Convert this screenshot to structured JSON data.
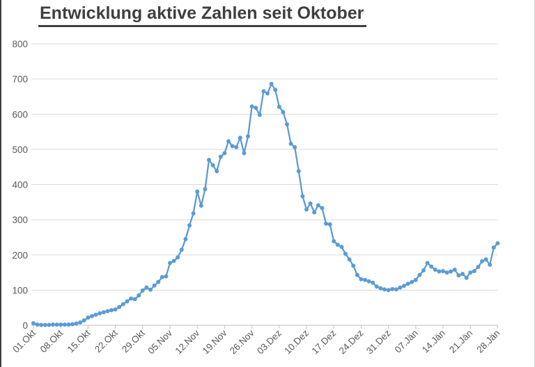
{
  "title": "Entwicklung aktive Zahlen seit Oktober",
  "colors": {
    "line": "#5B9BD5",
    "marker": "#5B9BD5",
    "grid": "#D9D9D9",
    "axis": "#BFBFBF",
    "tick_label": "#595959",
    "title": "#3F3F3F"
  },
  "chart_data": {
    "type": "line",
    "title": "Entwicklung aktive Zahlen seit Oktober",
    "xlabel": "",
    "ylabel": "",
    "legend": "none",
    "grid": "horizontal",
    "marker": "circle",
    "ylim": [
      0,
      800
    ],
    "y_ticks": [
      0,
      100,
      200,
      300,
      400,
      500,
      600,
      700,
      800
    ],
    "x_unit": "day",
    "x_tick_interval_days": 7,
    "x_tick_labels": [
      "01.Okt",
      "08.Okt",
      "15.Okt",
      "22.Okt",
      "29.Okt",
      "05.Nov",
      "12.Nov",
      "19.Nov",
      "26.Nov",
      "03.Dez",
      "10.Dez",
      "17.Dez",
      "24.Dez",
      "31.Dez",
      "07.Jän",
      "14.Jän",
      "21.Jän",
      "28.Jän"
    ],
    "series": [
      {
        "name": "aktive Zahlen",
        "start_date": "01.Okt",
        "end_date": "28.Jän",
        "values": [
          6,
          2,
          1,
          1,
          1,
          2,
          2,
          2,
          2,
          2,
          3,
          5,
          8,
          14,
          22,
          26,
          30,
          34,
          37,
          40,
          43,
          45,
          52,
          60,
          68,
          76,
          74,
          85,
          99,
          107,
          101,
          113,
          123,
          137,
          139,
          177,
          183,
          193,
          215,
          245,
          284,
          318,
          380,
          340,
          387,
          470,
          455,
          438,
          479,
          489,
          523,
          509,
          506,
          533,
          489,
          537,
          622,
          618,
          598,
          665,
          659,
          686,
          669,
          621,
          606,
          571,
          516,
          506,
          438,
          367,
          329,
          346,
          321,
          341,
          333,
          289,
          287,
          239,
          229,
          223,
          203,
          187,
          169,
          143,
          131,
          129,
          125,
          121,
          110,
          105,
          102,
          100,
          103,
          102,
          107,
          112,
          118,
          123,
          129,
          143,
          156,
          177,
          167,
          158,
          153,
          154,
          150,
          153,
          158,
          142,
          146,
          135,
          150,
          154,
          166,
          182,
          187,
          172,
          221,
          233
        ]
      }
    ]
  },
  "layout_meta": {
    "plot_note": "weekly ticks, daily points"
  }
}
